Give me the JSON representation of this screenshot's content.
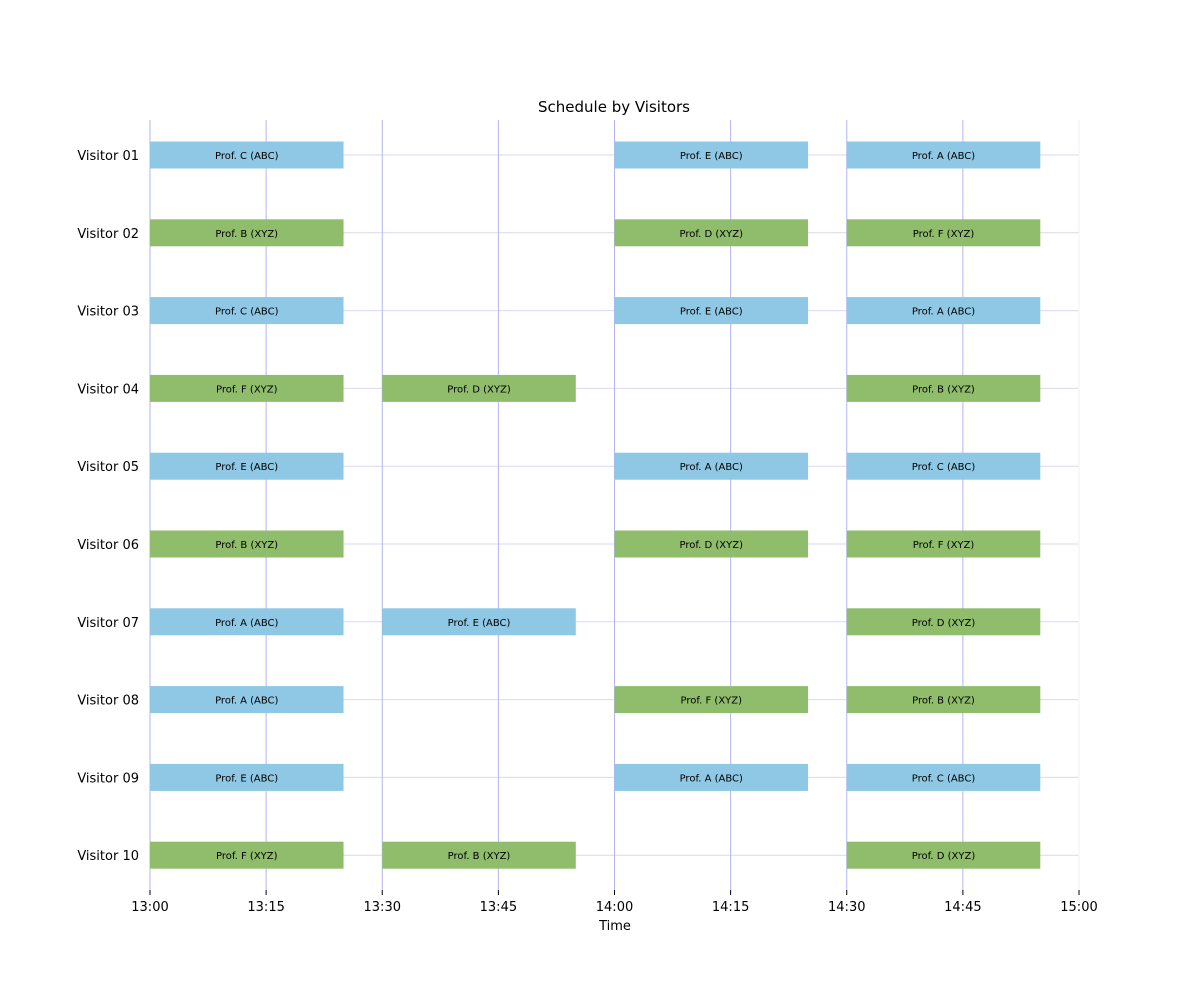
{
  "chart_data": {
    "type": "gantt",
    "title": "Schedule by Visitors",
    "xlabel": "Time",
    "ylabel": "",
    "x_ticks": [
      "13:00",
      "13:15",
      "13:30",
      "13:45",
      "14:00",
      "14:15",
      "14:30",
      "14:45",
      "15:00"
    ],
    "xlim": [
      "13:00",
      "15:00"
    ],
    "grid": {
      "vertical": "every 15 minutes",
      "horizontal": "each visitor row"
    },
    "colors": {
      "ABC": "#8ec8e4",
      "XYZ": "#8fbd6b",
      "grid_major": "#b3b3f5",
      "grid_minor": "#d9d9f2"
    },
    "categories": [
      "Visitor 01",
      "Visitor 02",
      "Visitor 03",
      "Visitor 04",
      "Visitor 05",
      "Visitor 06",
      "Visitor 07",
      "Visitor 08",
      "Visitor 09",
      "Visitor 10"
    ],
    "meetings": [
      {
        "visitor": "Visitor 01",
        "start": "13:00",
        "end": "13:25",
        "label": "Prof. C (ABC)",
        "group": "ABC"
      },
      {
        "visitor": "Visitor 01",
        "start": "14:00",
        "end": "14:25",
        "label": "Prof. E (ABC)",
        "group": "ABC"
      },
      {
        "visitor": "Visitor 01",
        "start": "14:30",
        "end": "14:55",
        "label": "Prof. A (ABC)",
        "group": "ABC"
      },
      {
        "visitor": "Visitor 02",
        "start": "13:00",
        "end": "13:25",
        "label": "Prof. B (XYZ)",
        "group": "XYZ"
      },
      {
        "visitor": "Visitor 02",
        "start": "14:00",
        "end": "14:25",
        "label": "Prof. D (XYZ)",
        "group": "XYZ"
      },
      {
        "visitor": "Visitor 02",
        "start": "14:30",
        "end": "14:55",
        "label": "Prof. F (XYZ)",
        "group": "XYZ"
      },
      {
        "visitor": "Visitor 03",
        "start": "13:00",
        "end": "13:25",
        "label": "Prof. C (ABC)",
        "group": "ABC"
      },
      {
        "visitor": "Visitor 03",
        "start": "14:00",
        "end": "14:25",
        "label": "Prof. E (ABC)",
        "group": "ABC"
      },
      {
        "visitor": "Visitor 03",
        "start": "14:30",
        "end": "14:55",
        "label": "Prof. A (ABC)",
        "group": "ABC"
      },
      {
        "visitor": "Visitor 04",
        "start": "13:00",
        "end": "13:25",
        "label": "Prof. F (XYZ)",
        "group": "XYZ"
      },
      {
        "visitor": "Visitor 04",
        "start": "13:30",
        "end": "13:55",
        "label": "Prof. D (XYZ)",
        "group": "XYZ"
      },
      {
        "visitor": "Visitor 04",
        "start": "14:30",
        "end": "14:55",
        "label": "Prof. B (XYZ)",
        "group": "XYZ"
      },
      {
        "visitor": "Visitor 05",
        "start": "13:00",
        "end": "13:25",
        "label": "Prof. E (ABC)",
        "group": "ABC"
      },
      {
        "visitor": "Visitor 05",
        "start": "14:00",
        "end": "14:25",
        "label": "Prof. A (ABC)",
        "group": "ABC"
      },
      {
        "visitor": "Visitor 05",
        "start": "14:30",
        "end": "14:55",
        "label": "Prof. C (ABC)",
        "group": "ABC"
      },
      {
        "visitor": "Visitor 06",
        "start": "13:00",
        "end": "13:25",
        "label": "Prof. B (XYZ)",
        "group": "XYZ"
      },
      {
        "visitor": "Visitor 06",
        "start": "14:00",
        "end": "14:25",
        "label": "Prof. D (XYZ)",
        "group": "XYZ"
      },
      {
        "visitor": "Visitor 06",
        "start": "14:30",
        "end": "14:55",
        "label": "Prof. F (XYZ)",
        "group": "XYZ"
      },
      {
        "visitor": "Visitor 07",
        "start": "13:00",
        "end": "13:25",
        "label": "Prof. A (ABC)",
        "group": "ABC"
      },
      {
        "visitor": "Visitor 07",
        "start": "13:30",
        "end": "13:55",
        "label": "Prof. E (ABC)",
        "group": "ABC"
      },
      {
        "visitor": "Visitor 07",
        "start": "14:30",
        "end": "14:55",
        "label": "Prof. D (XYZ)",
        "group": "XYZ"
      },
      {
        "visitor": "Visitor 08",
        "start": "13:00",
        "end": "13:25",
        "label": "Prof. A (ABC)",
        "group": "ABC"
      },
      {
        "visitor": "Visitor 08",
        "start": "14:00",
        "end": "14:25",
        "label": "Prof. F (XYZ)",
        "group": "XYZ"
      },
      {
        "visitor": "Visitor 08",
        "start": "14:30",
        "end": "14:55",
        "label": "Prof. B (XYZ)",
        "group": "XYZ"
      },
      {
        "visitor": "Visitor 09",
        "start": "13:00",
        "end": "13:25",
        "label": "Prof. E (ABC)",
        "group": "ABC"
      },
      {
        "visitor": "Visitor 09",
        "start": "14:00",
        "end": "14:25",
        "label": "Prof. A (ABC)",
        "group": "ABC"
      },
      {
        "visitor": "Visitor 09",
        "start": "14:30",
        "end": "14:55",
        "label": "Prof. C (ABC)",
        "group": "ABC"
      },
      {
        "visitor": "Visitor 10",
        "start": "13:00",
        "end": "13:25",
        "label": "Prof. F (XYZ)",
        "group": "XYZ"
      },
      {
        "visitor": "Visitor 10",
        "start": "13:30",
        "end": "13:55",
        "label": "Prof. B (XYZ)",
        "group": "XYZ"
      },
      {
        "visitor": "Visitor 10",
        "start": "14:30",
        "end": "14:55",
        "label": "Prof. D (XYZ)",
        "group": "XYZ"
      }
    ]
  }
}
